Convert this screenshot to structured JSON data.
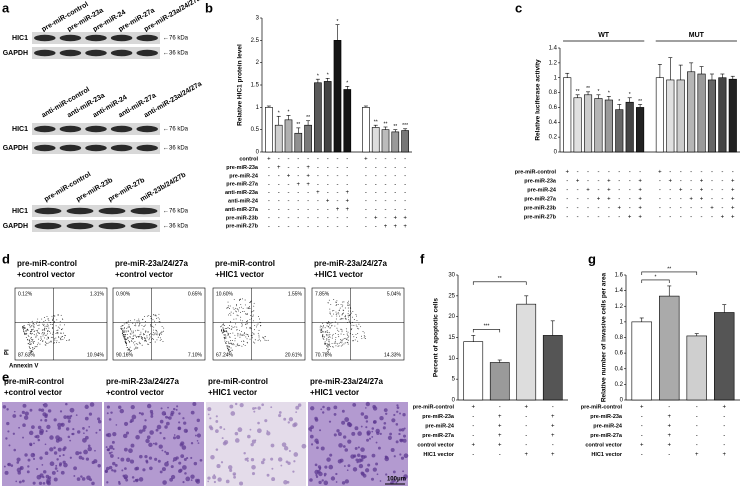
{
  "panels": [
    "a",
    "b",
    "c",
    "d",
    "e",
    "f",
    "g"
  ],
  "blots": [
    {
      "lanes": [
        "pre-miR-control",
        "pre-miR-23a",
        "pre-miR-24",
        "pre-miR-27a",
        "pre-miR-23a/24/27a"
      ],
      "rows": [
        "HIC1",
        "GAPDH"
      ],
      "markers": [
        "←76 kDa",
        "←36 kDa"
      ]
    },
    {
      "lanes": [
        "anti-miR-control",
        "anti-miR-23a",
        "anti-miR-24",
        "anti-miR-27a",
        "anti-miR-23a/24/27a"
      ],
      "rows": [
        "HIC1",
        "GAPDH"
      ],
      "markers": [
        "←76 kDa",
        "←36 kDa"
      ]
    },
    {
      "lanes": [
        "pre-miR-control",
        "pre-miR-23b",
        "pre-miR-27b",
        "miR-23b/24/27b"
      ],
      "rows": [
        "HIC1",
        "GAPDH"
      ],
      "markers": [
        "←76 kDa",
        "←36 kDa"
      ]
    }
  ],
  "flow": {
    "y_axis": "PI",
    "x_axis": "Annexin V",
    "plots": [
      {
        "title": [
          "pre-miR-control",
          "+control vector"
        ],
        "quadrants": [
          "0.12%",
          "1.31%",
          "87.63%",
          "10.94%"
        ]
      },
      {
        "title": [
          "pre-miR-23a/24/27a",
          "+control vector"
        ],
        "quadrants": [
          "0.90%",
          "0.65%",
          "90.16%",
          "7.10%"
        ]
      },
      {
        "title": [
          "pre-miR-control",
          "+HIC1 vector"
        ],
        "quadrants": [
          "10.60%",
          "1.55%",
          "67.24%",
          "20.61%"
        ]
      },
      {
        "title": [
          "pre-miR-23a/24/27a",
          "+HIC1 vector"
        ],
        "quadrants": [
          "7.85%",
          "5.04%",
          "70.78%",
          "14.33%"
        ]
      }
    ]
  },
  "micrographs": {
    "titles": [
      [
        "pre-miR-control",
        "+control vector"
      ],
      [
        "pre-miR-23a/24/27a",
        "+control vector"
      ],
      [
        "pre-miR-control",
        "+HIC1 vector"
      ],
      [
        "pre-miR-23a/24/27a",
        "+HIC1 vector"
      ]
    ],
    "scale": "100μm"
  },
  "chart_data": [
    {
      "type": "bar",
      "panel": "b",
      "ylabel": "Relative HIC1 protein level",
      "values": [
        1.0,
        0.6,
        0.72,
        0.42,
        0.6,
        1.55,
        1.58,
        2.5,
        1.4,
        1.0,
        0.55,
        0.5,
        0.45,
        0.48
      ],
      "errors": [
        0.03,
        0.2,
        0.1,
        0.12,
        0.1,
        0.08,
        0.07,
        0.35,
        0.07,
        0.03,
        0.05,
        0.06,
        0.05,
        0.04
      ],
      "colors": [
        "#ffffff",
        "#cfcfcf",
        "#b0b0b0",
        "#909090",
        "#7a7a7a",
        "#5a5a5a",
        "#444444",
        "#151515",
        "#151515",
        "#ffffff",
        "#dddddd",
        "#bbbbbb",
        "#999999",
        "#777777"
      ],
      "sig_labels": [
        null,
        "*",
        "*",
        "**",
        "**",
        "*",
        "*",
        "*",
        "*",
        null,
        "**",
        "**",
        "**",
        "***"
      ],
      "groups": [
        {
          "size": 9
        },
        {
          "size": 5
        }
      ],
      "ylim": [
        0,
        3
      ],
      "yticks": [
        0,
        0.5,
        1,
        1.5,
        2,
        2.5,
        3
      ],
      "conditions": {
        "labels": [
          "control",
          "pre-miR-23a",
          "pre-miR-24",
          "pre-miR-27a",
          "anti-miR-23a",
          "anti-miR-24",
          "anti-miR-27a",
          "pre-miR-23b",
          "pre-miR-27b"
        ],
        "signs": [
          [
            "+",
            "-",
            "-",
            "-",
            "-",
            "-",
            "-",
            "-",
            "-",
            "+",
            "-",
            "-",
            "-",
            "-"
          ],
          [
            "-",
            "+",
            "-",
            "-",
            "+",
            "-",
            "-",
            "-",
            "-",
            "-",
            "-",
            "-",
            "-",
            "-"
          ],
          [
            "-",
            "-",
            "+",
            "-",
            "+",
            "-",
            "-",
            "-",
            "-",
            "-",
            "-",
            "-",
            "-",
            "-"
          ],
          [
            "-",
            "-",
            "-",
            "+",
            "+",
            "-",
            "-",
            "-",
            "-",
            "-",
            "-",
            "-",
            "-",
            "-"
          ],
          [
            "-",
            "-",
            "-",
            "-",
            "-",
            "+",
            "-",
            "-",
            "+",
            "-",
            "-",
            "-",
            "-",
            "-"
          ],
          [
            "-",
            "-",
            "-",
            "-",
            "-",
            "-",
            "+",
            "-",
            "+",
            "-",
            "-",
            "-",
            "-",
            "-"
          ],
          [
            "-",
            "-",
            "-",
            "-",
            "-",
            "-",
            "-",
            "+",
            "+",
            "-",
            "-",
            "-",
            "-",
            "-"
          ],
          [
            "-",
            "-",
            "-",
            "-",
            "-",
            "-",
            "-",
            "-",
            "-",
            "-",
            "+",
            "-",
            "+",
            "+"
          ],
          [
            "-",
            "-",
            "-",
            "-",
            "-",
            "-",
            "-",
            "-",
            "-",
            "-",
            "-",
            "+",
            "+",
            "+"
          ]
        ]
      }
    },
    {
      "type": "bar",
      "panel": "c",
      "ylabel": "Relative luciferase activity",
      "values": [
        1.0,
        0.73,
        0.77,
        0.72,
        0.7,
        0.57,
        0.67,
        0.6,
        1.0,
        0.97,
        0.97,
        1.08,
        1.05,
        0.97,
        1.0,
        0.98
      ],
      "errors": [
        0.06,
        0.04,
        0.04,
        0.05,
        0.05,
        0.07,
        0.06,
        0.04,
        0.18,
        0.3,
        0.2,
        0.12,
        0.1,
        0.08,
        0.05,
        0.04
      ],
      "colors": [
        "#ffffff",
        "#e0e0e0",
        "#cccccc",
        "#b5b5b5",
        "#9a9a9a",
        "#666666",
        "#444444",
        "#222222",
        "#ffffff",
        "#e0e0e0",
        "#cccccc",
        "#b5b5b5",
        "#9a9a9a",
        "#666666",
        "#444444",
        "#222222"
      ],
      "sig_labels": [
        null,
        "**",
        "**",
        "*",
        "*",
        "*",
        "*",
        "**",
        null,
        null,
        null,
        null,
        null,
        null,
        null,
        null
      ],
      "groups": [
        {
          "label": "WT",
          "size": 8
        },
        {
          "label": "MUT",
          "size": 8
        }
      ],
      "ylim": [
        0,
        1.4
      ],
      "yticks": [
        0,
        0.2,
        0.4,
        0.6,
        0.8,
        1,
        1.2,
        1.4
      ],
      "conditions": {
        "labels": [
          "pre-miR-control",
          "pre-miR-23a",
          "pre-miR-24",
          "pre-miR-27a",
          "pre-miR-23b",
          "pre-miR-27b"
        ],
        "signs": [
          [
            "+",
            "-",
            "-",
            "-",
            "-",
            "-",
            "-",
            "-",
            "+",
            "-",
            "-",
            "-",
            "-",
            "-",
            "-",
            "-"
          ],
          [
            "-",
            "+",
            "-",
            "-",
            "+",
            "-",
            "-",
            "+",
            "-",
            "+",
            "-",
            "-",
            "+",
            "-",
            "-",
            "+"
          ],
          [
            "-",
            "-",
            "+",
            "-",
            "+",
            "-",
            "-",
            "+",
            "-",
            "-",
            "+",
            "-",
            "+",
            "-",
            "-",
            "+"
          ],
          [
            "-",
            "-",
            "-",
            "+",
            "+",
            "-",
            "-",
            "+",
            "-",
            "-",
            "-",
            "+",
            "+",
            "-",
            "-",
            "+"
          ],
          [
            "-",
            "-",
            "-",
            "-",
            "-",
            "+",
            "-",
            "+",
            "-",
            "-",
            "-",
            "-",
            "-",
            "+",
            "-",
            "+"
          ],
          [
            "-",
            "-",
            "-",
            "-",
            "-",
            "-",
            "+",
            "+",
            "-",
            "-",
            "-",
            "-",
            "-",
            "-",
            "+",
            "+"
          ]
        ]
      }
    },
    {
      "type": "bar",
      "panel": "f",
      "ylabel": "Percent of apoptotic cells",
      "values": [
        14,
        9,
        23,
        15.5
      ],
      "errors": [
        1.5,
        0.6,
        2,
        3.5
      ],
      "colors": [
        "#ffffff",
        "#9a9a9a",
        "#dddddd",
        "#555555"
      ],
      "sig_labels": [
        null,
        null,
        null,
        null
      ],
      "groups": [
        {
          "size": 4
        }
      ],
      "brackets": [
        {
          "from": 0,
          "to": 1,
          "label": "***"
        },
        {
          "from": 0,
          "to": 2,
          "label": "**"
        }
      ],
      "ylim": [
        0,
        30
      ],
      "yticks": [
        0,
        5,
        10,
        15,
        20,
        25,
        30
      ],
      "conditions": {
        "labels": [
          "pre-miR-control",
          "pre-miR-23a",
          "pre-miR-24",
          "pre-miR-27a",
          "control vector",
          "HIC1 vector"
        ],
        "signs": [
          [
            "+",
            "-",
            "+",
            "-"
          ],
          [
            "-",
            "+",
            "-",
            "+"
          ],
          [
            "-",
            "+",
            "-",
            "+"
          ],
          [
            "-",
            "+",
            "-",
            "+"
          ],
          [
            "+",
            "+",
            "-",
            "-"
          ],
          [
            "-",
            "-",
            "+",
            "+"
          ]
        ]
      }
    },
    {
      "type": "bar",
      "panel": "g",
      "ylabel": "Relative number of invasive cells per area",
      "values": [
        1.0,
        1.33,
        0.82,
        1.12
      ],
      "errors": [
        0.05,
        0.13,
        0.03,
        0.1
      ],
      "colors": [
        "#ffffff",
        "#aaaaaa",
        "#cfcfcf",
        "#555555"
      ],
      "sig_labels": [
        null,
        null,
        null,
        null
      ],
      "groups": [
        {
          "size": 4
        }
      ],
      "brackets": [
        {
          "from": 0,
          "to": 1,
          "label": "*"
        },
        {
          "from": 0,
          "to": 2,
          "label": "**"
        }
      ],
      "ylim": [
        0,
        1.6
      ],
      "yticks": [
        0,
        0.2,
        0.4,
        0.6,
        0.8,
        1,
        1.2,
        1.4,
        1.6
      ],
      "conditions": {
        "labels": [
          "pre-miR-control",
          "pre-miR-23a",
          "pre-miR-24",
          "pre-miR-27a",
          "control vector",
          "HIC1 vector"
        ],
        "signs": [
          [
            "+",
            "-",
            "-",
            "+"
          ],
          [
            "-",
            "+",
            "-",
            "-"
          ],
          [
            "-",
            "+",
            "-",
            "-"
          ],
          [
            "-",
            "+",
            "-",
            "-"
          ],
          [
            "+",
            "+",
            "-",
            "-"
          ],
          [
            "-",
            "-",
            "+",
            "+"
          ]
        ]
      }
    }
  ]
}
